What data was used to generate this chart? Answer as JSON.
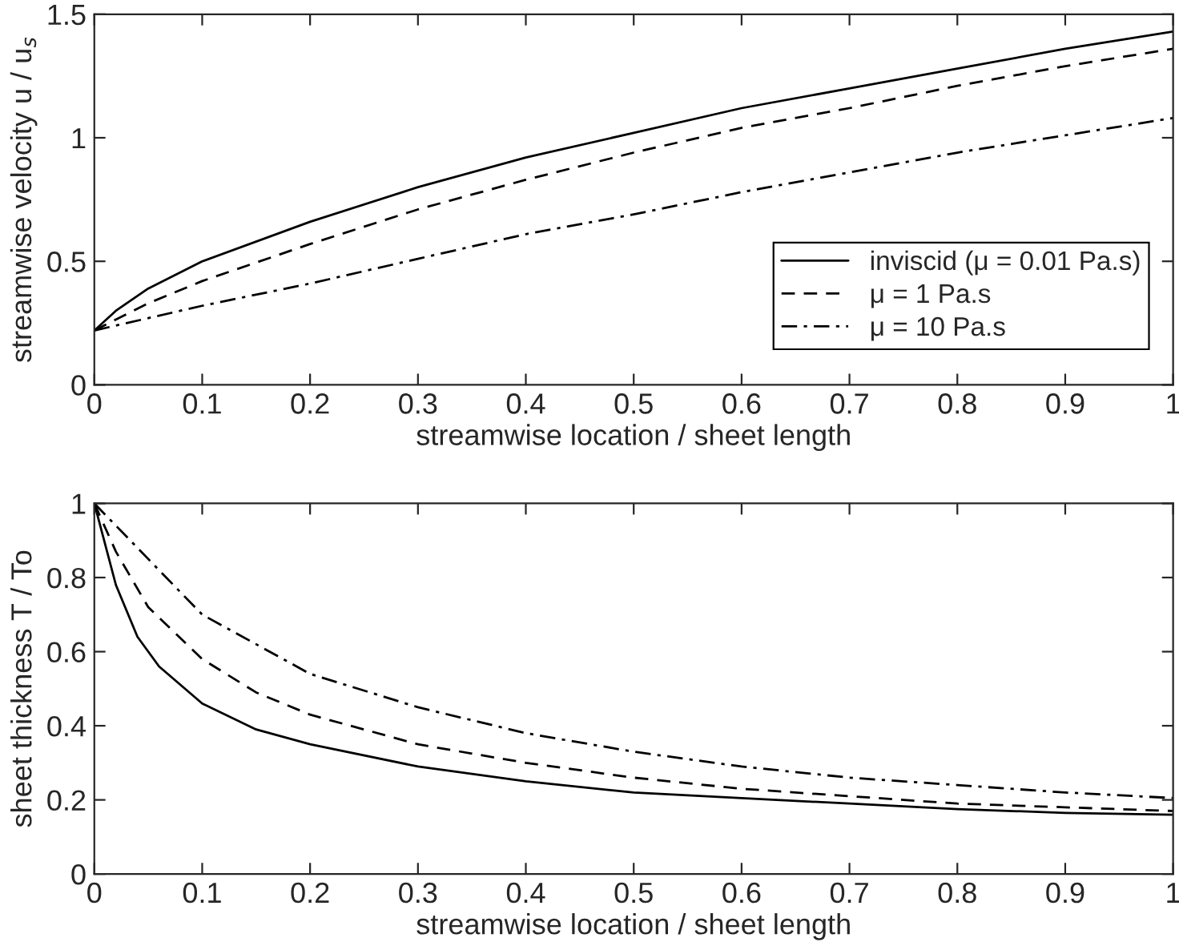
{
  "chart_data": [
    {
      "type": "line",
      "xlabel": "streamwise location / sheet length",
      "ylabel": "streamwise velocity u / u$_{s}$",
      "xlim": [
        0,
        1
      ],
      "ylim": [
        0,
        1.5
      ],
      "xticks": [
        0,
        0.1,
        0.2,
        0.3,
        0.4,
        0.5,
        0.6,
        0.7,
        0.8,
        0.9,
        1
      ],
      "yticks": [
        0,
        0.5,
        1,
        1.5
      ],
      "grid": false,
      "legend": "right",
      "series": [
        {
          "name": "inviscid (μ = 0.01 Pa.s)",
          "color": "#000000",
          "line_style": "solid",
          "x": [
            0,
            0.02,
            0.05,
            0.1,
            0.2,
            0.3,
            0.4,
            0.5,
            0.6,
            0.7,
            0.8,
            0.9,
            1
          ],
          "values": [
            0.22,
            0.3,
            0.39,
            0.5,
            0.66,
            0.8,
            0.92,
            1.02,
            1.12,
            1.2,
            1.28,
            1.36,
            1.43
          ]
        },
        {
          "name": "μ = 1 Pa.s",
          "color": "#000000",
          "line_style": "dashed",
          "x": [
            0,
            0.05,
            0.1,
            0.2,
            0.3,
            0.4,
            0.5,
            0.6,
            0.7,
            0.8,
            0.9,
            1
          ],
          "values": [
            0.22,
            0.33,
            0.42,
            0.57,
            0.71,
            0.83,
            0.94,
            1.04,
            1.12,
            1.21,
            1.29,
            1.36
          ]
        },
        {
          "name": "μ = 10 Pa.s",
          "color": "#000000",
          "line_style": "dashdot",
          "x": [
            0,
            0.1,
            0.2,
            0.3,
            0.4,
            0.5,
            0.6,
            0.7,
            0.8,
            0.9,
            1
          ],
          "values": [
            0.22,
            0.32,
            0.41,
            0.51,
            0.61,
            0.69,
            0.78,
            0.86,
            0.94,
            1.01,
            1.08
          ]
        }
      ]
    },
    {
      "type": "line",
      "xlabel": "streamwise location / sheet length",
      "ylabel": "sheet thickness T / To",
      "xlim": [
        0,
        1
      ],
      "ylim": [
        0,
        1
      ],
      "xticks": [
        0,
        0.1,
        0.2,
        0.3,
        0.4,
        0.5,
        0.6,
        0.7,
        0.8,
        0.9,
        1
      ],
      "yticks": [
        0,
        0.2,
        0.4,
        0.6,
        0.8,
        1
      ],
      "grid": false,
      "legend": false,
      "series": [
        {
          "color": "#000000",
          "line_style": "solid",
          "x": [
            0,
            0.02,
            0.04,
            0.06,
            0.1,
            0.15,
            0.2,
            0.3,
            0.4,
            0.5,
            0.6,
            0.7,
            0.8,
            0.9,
            1
          ],
          "values": [
            1,
            0.78,
            0.64,
            0.56,
            0.46,
            0.39,
            0.35,
            0.29,
            0.25,
            0.22,
            0.205,
            0.19,
            0.175,
            0.165,
            0.16
          ]
        },
        {
          "color": "#000000",
          "line_style": "dashed",
          "x": [
            0,
            0.02,
            0.05,
            0.1,
            0.15,
            0.2,
            0.3,
            0.4,
            0.5,
            0.6,
            0.7,
            0.8,
            0.9,
            1
          ],
          "values": [
            1,
            0.87,
            0.72,
            0.58,
            0.49,
            0.43,
            0.35,
            0.3,
            0.26,
            0.23,
            0.21,
            0.19,
            0.18,
            0.17
          ]
        },
        {
          "color": "#000000",
          "line_style": "dashdot",
          "x": [
            0,
            0.05,
            0.1,
            0.2,
            0.3,
            0.4,
            0.5,
            0.6,
            0.7,
            0.8,
            0.9,
            1
          ],
          "values": [
            1,
            0.85,
            0.7,
            0.54,
            0.45,
            0.38,
            0.33,
            0.29,
            0.26,
            0.24,
            0.22,
            0.205
          ]
        }
      ]
    }
  ]
}
